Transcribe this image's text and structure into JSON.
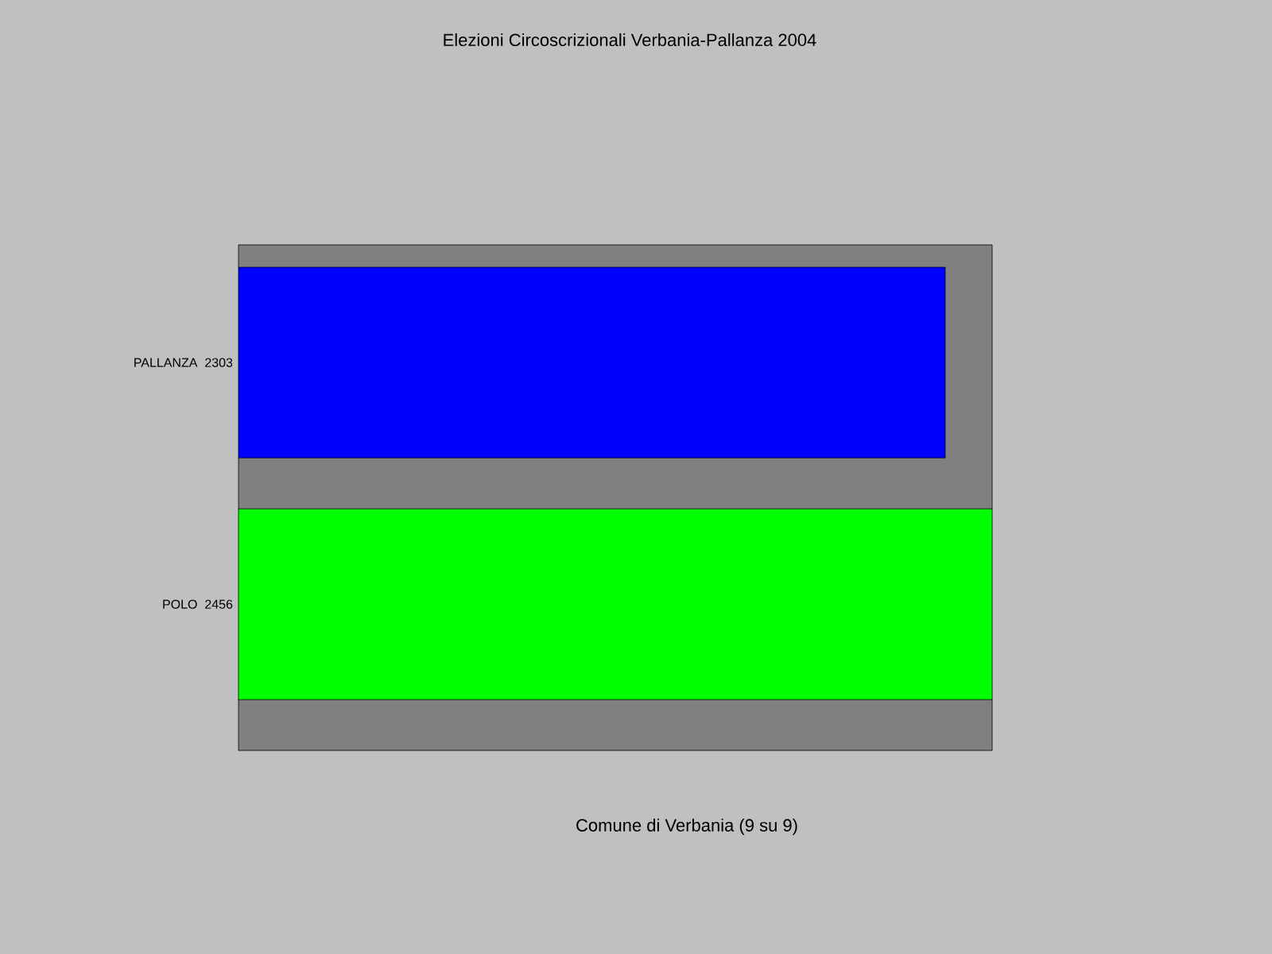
{
  "chart_data": {
    "type": "bar",
    "orientation": "horizontal",
    "title": "Elezioni Circoscrizionali Verbania-Pallanza 2004",
    "xlabel": "Comune di Verbania (9 su 9)",
    "categories": [
      "PALLANZA",
      "POLO"
    ],
    "values": [
      2303,
      2456
    ],
    "colors": [
      "#0000ff",
      "#00ff00"
    ],
    "data_labels": true
  }
}
